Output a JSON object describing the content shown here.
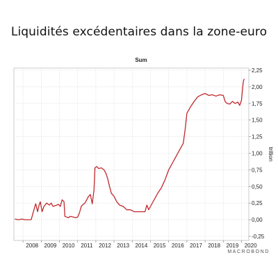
{
  "page": {
    "title": "Liquidités excédentaires dans la zone-euro"
  },
  "chart_data": {
    "type": "line",
    "title": "Sum",
    "xlabel": "",
    "ylabel": "",
    "unit": "trillion",
    "source": "MACROBOND",
    "xlim": [
      2007.5,
      2020.4
    ],
    "ylim": [
      -0.25,
      2.25
    ],
    "y_axis_side": "right",
    "grid": true,
    "legend": "none",
    "color": "#c0282d",
    "x_ticks": [
      "2008",
      "2009",
      "2010",
      "2011",
      "2012",
      "2013",
      "2014",
      "2015",
      "2016",
      "2017",
      "2018",
      "2019",
      "2020"
    ],
    "y_ticks": [
      {
        "value": 2.25,
        "label": "2,25"
      },
      {
        "value": 2.0,
        "label": "2,00"
      },
      {
        "value": 1.75,
        "label": "1,75"
      },
      {
        "value": 1.5,
        "label": "1,50"
      },
      {
        "value": 1.25,
        "label": "1,25"
      },
      {
        "value": 1.0,
        "label": "1,00"
      },
      {
        "value": 0.75,
        "label": "0,75"
      },
      {
        "value": 0.5,
        "label": "0,50"
      },
      {
        "value": 0.25,
        "label": "0,25"
      },
      {
        "value": 0.0,
        "label": "0,00"
      },
      {
        "value": -0.25,
        "label": "-0,25"
      }
    ],
    "series": [
      {
        "x": [
          2007.55,
          2007.75,
          2007.95,
          2008.1,
          2008.3,
          2008.45,
          2008.6,
          2008.7,
          2008.8,
          2008.88,
          2008.95,
          2009.05,
          2009.15,
          2009.3,
          2009.45,
          2009.55,
          2009.65,
          2009.75,
          2009.85,
          2009.95,
          2010.05,
          2010.15,
          2010.25,
          2010.3,
          2010.4,
          2010.5,
          2010.6,
          2010.75,
          2010.9,
          2011.0,
          2011.1,
          2011.2,
          2011.3,
          2011.4,
          2011.5,
          2011.6,
          2011.7,
          2011.8,
          2011.9,
          2011.95,
          2012.05,
          2012.15,
          2012.3,
          2012.45,
          2012.55,
          2012.65,
          2012.75,
          2012.85,
          2013.0,
          2013.15,
          2013.3,
          2013.5,
          2013.7,
          2013.9,
          2014.1,
          2014.3,
          2014.5,
          2014.7,
          2014.8,
          2014.9,
          2015.0,
          2015.2,
          2015.4,
          2015.6,
          2015.8,
          2016.0,
          2016.2,
          2016.4,
          2016.6,
          2016.8,
          2016.9,
          2017.0,
          2017.2,
          2017.4,
          2017.6,
          2017.8,
          2018.0,
          2018.2,
          2018.4,
          2018.6,
          2018.8,
          2019.0,
          2019.1,
          2019.2,
          2019.35,
          2019.5,
          2019.65,
          2019.8,
          2019.9,
          2020.0,
          2020.05,
          2020.1,
          2020.15
        ],
        "y": [
          0.01,
          0.0,
          0.01,
          0.0,
          0.0,
          0.0,
          0.15,
          0.24,
          0.12,
          0.22,
          0.27,
          0.12,
          0.2,
          0.25,
          0.22,
          0.25,
          0.2,
          0.21,
          0.22,
          0.23,
          0.2,
          0.3,
          0.27,
          0.05,
          0.04,
          0.03,
          0.05,
          0.04,
          0.03,
          0.04,
          0.1,
          0.2,
          0.23,
          0.25,
          0.3,
          0.35,
          0.38,
          0.24,
          0.45,
          0.78,
          0.8,
          0.77,
          0.78,
          0.75,
          0.7,
          0.62,
          0.5,
          0.4,
          0.35,
          0.27,
          0.22,
          0.2,
          0.15,
          0.15,
          0.12,
          0.12,
          0.12,
          0.12,
          0.22,
          0.15,
          0.2,
          0.3,
          0.4,
          0.48,
          0.6,
          0.75,
          0.85,
          0.95,
          1.05,
          1.15,
          1.35,
          1.6,
          1.7,
          1.78,
          1.85,
          1.88,
          1.9,
          1.87,
          1.88,
          1.86,
          1.88,
          1.87,
          1.78,
          1.75,
          1.74,
          1.78,
          1.75,
          1.77,
          1.72,
          1.8,
          1.95,
          2.08,
          2.12
        ]
      }
    ]
  }
}
